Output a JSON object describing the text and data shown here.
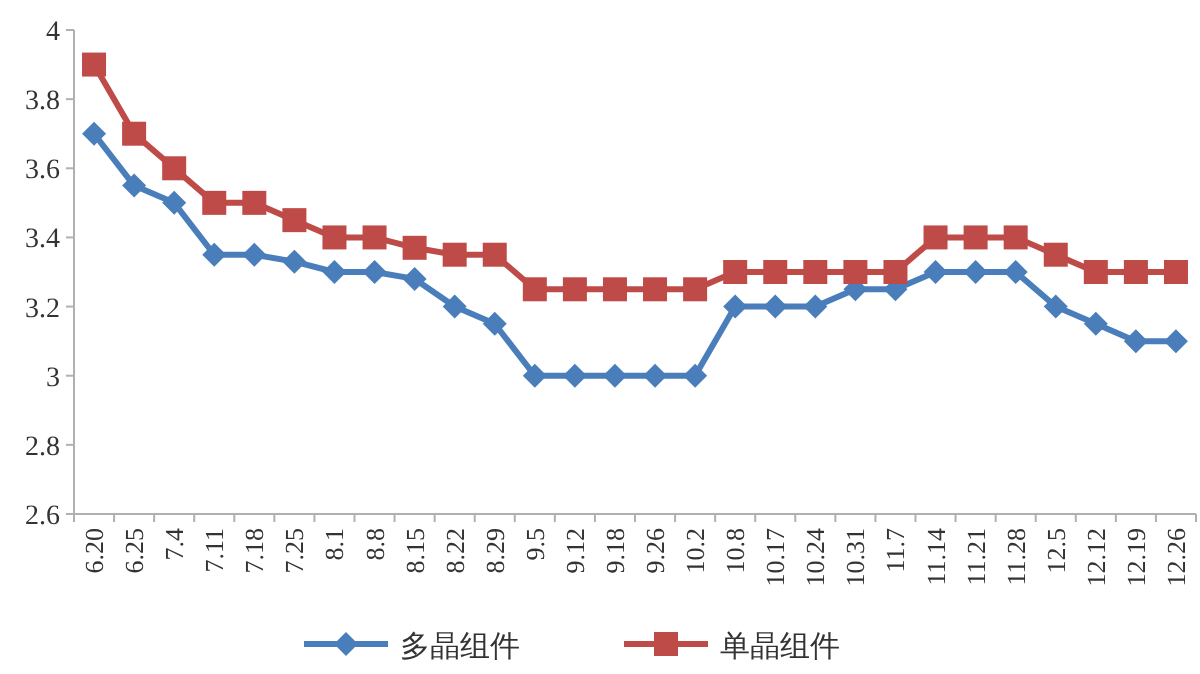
{
  "chart_data": {
    "type": "line",
    "categories": [
      "6.20",
      "6.25",
      "7.4",
      "7.11",
      "7.18",
      "7.25",
      "8.1",
      "8.8",
      "8.15",
      "8.22",
      "8.29",
      "9.5",
      "9.12",
      "9.18",
      "9.26",
      "10.2",
      "10.8",
      "10.17",
      "10.24",
      "10.31",
      "11.7",
      "11.14",
      "11.21",
      "11.28",
      "12.5",
      "12.12",
      "12.19",
      "12.26"
    ],
    "series": [
      {
        "name": "多晶组件",
        "color": "#4a7ebb",
        "marker": "diamond",
        "values": [
          3.7,
          3.55,
          3.5,
          3.35,
          3.35,
          3.33,
          3.3,
          3.3,
          3.28,
          3.2,
          3.15,
          3.0,
          3.0,
          3.0,
          3.0,
          3.0,
          3.2,
          3.2,
          3.2,
          3.25,
          3.25,
          3.3,
          3.3,
          3.3,
          3.2,
          3.15,
          3.1,
          3.1
        ]
      },
      {
        "name": "单晶组件",
        "color": "#be4b48",
        "marker": "square",
        "values": [
          3.9,
          3.7,
          3.6,
          3.5,
          3.5,
          3.45,
          3.4,
          3.4,
          3.37,
          3.35,
          3.35,
          3.25,
          3.25,
          3.25,
          3.25,
          3.25,
          3.3,
          3.3,
          3.3,
          3.3,
          3.3,
          3.4,
          3.4,
          3.4,
          3.35,
          3.3,
          3.3,
          3.3
        ]
      }
    ],
    "ylim": [
      2.6,
      4
    ],
    "yticks": [
      2.6,
      2.8,
      3,
      3.2,
      3.4,
      3.6,
      3.8,
      4
    ],
    "grid": false,
    "legend": "bottom",
    "line_style": "solid"
  }
}
